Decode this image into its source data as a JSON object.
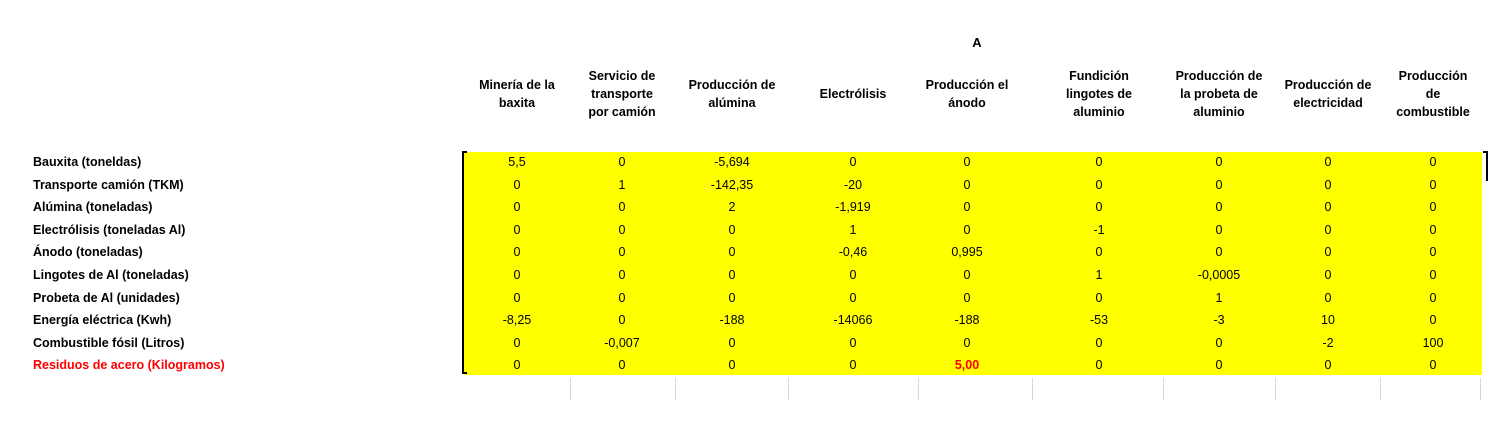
{
  "matrix_label": "A",
  "columns": [
    "Minería de la\nbaxita",
    "Servicio de\ntransporte\npor camión",
    "Producción de\nalúmina",
    "Electrólisis",
    "Producción el\nánodo",
    "Fundición\nlingotes de\naluminio",
    "Producción de\nla probeta de\naluminio",
    "Producción de\nelectricidad",
    "Producción\nde\ncombustible"
  ],
  "rows": [
    {
      "label": "Bauxita (toneldas)",
      "values": [
        "5,5",
        "0",
        "-5,694",
        "0",
        "0",
        "0",
        "0",
        "0",
        "0"
      ]
    },
    {
      "label": "Transporte camión (TKM)",
      "values": [
        "0",
        "1",
        "-142,35",
        "-20",
        "0",
        "0",
        "0",
        "0",
        "0"
      ]
    },
    {
      "label": "Alúmina (toneladas)",
      "values": [
        "0",
        "0",
        "2",
        "-1,919",
        "0",
        "0",
        "0",
        "0",
        "0"
      ]
    },
    {
      "label": "Electrólisis (toneladas Al)",
      "values": [
        "0",
        "0",
        "0",
        "1",
        "0",
        "-1",
        "0",
        "0",
        "0"
      ]
    },
    {
      "label": "Ánodo (toneladas)",
      "values": [
        "0",
        "0",
        "0",
        "-0,46",
        "0,995",
        "0",
        "0",
        "0",
        "0"
      ]
    },
    {
      "label": "Lingotes de Al (toneladas)",
      "values": [
        "0",
        "0",
        "0",
        "0",
        "0",
        "1",
        "-0,0005",
        "0",
        "0"
      ]
    },
    {
      "label": "Probeta de Al (unidades)",
      "values": [
        "0",
        "0",
        "0",
        "0",
        "0",
        "0",
        "1",
        "0",
        "0"
      ]
    },
    {
      "label": "Energía eléctrica (Kwh)",
      "values": [
        "-8,25",
        "0",
        "-188",
        "-14066",
        "-188",
        "-53",
        "-3",
        "10",
        "0"
      ]
    },
    {
      "label": "Combustible fósil (Litros)",
      "values": [
        "0",
        "-0,007",
        "0",
        "0",
        "0",
        "0",
        "0",
        "-2",
        "100"
      ]
    },
    {
      "label": "Residuos de acero (Kilogramos)",
      "values": [
        "0",
        "0",
        "0",
        "0",
        "5,00",
        "0",
        "0",
        "0",
        "0"
      ],
      "highlight": true
    }
  ],
  "colors": {
    "highlight_fill": "#ffff00",
    "alert_text": "#ff0000"
  }
}
